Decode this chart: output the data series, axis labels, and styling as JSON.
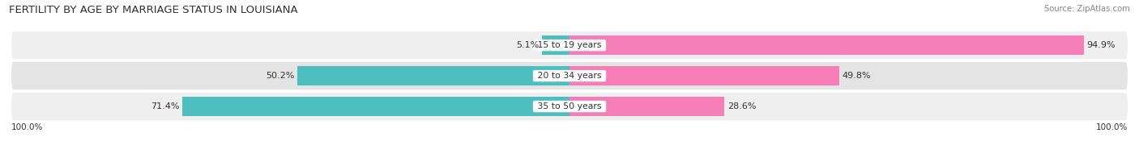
{
  "title": "FERTILITY BY AGE BY MARRIAGE STATUS IN LOUISIANA",
  "source": "Source: ZipAtlas.com",
  "categories": [
    "15 to 19 years",
    "20 to 34 years",
    "35 to 50 years"
  ],
  "married_pct": [
    5.1,
    50.2,
    71.4
  ],
  "unmarried_pct": [
    94.9,
    49.8,
    28.6
  ],
  "married_color": "#4dbfbf",
  "unmarried_color": "#f57eb6",
  "bar_height": 0.62,
  "title_fontsize": 9.5,
  "label_fontsize": 8.0,
  "cat_label_fontsize": 7.8,
  "axis_label_fontsize": 7.5,
  "legend_fontsize": 8.0,
  "background_color": "#ffffff",
  "row_bg_even": "#efefef",
  "row_bg_odd": "#e4e4e4",
  "text_color": "#333333",
  "source_color": "#888888",
  "xlim": 103
}
